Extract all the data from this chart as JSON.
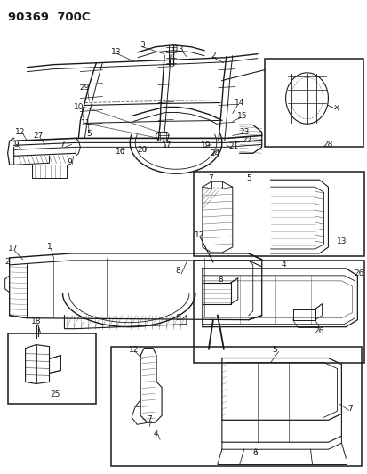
{
  "title": "90369  700C",
  "bg_color": "#ffffff",
  "line_color": "#1a1a1a",
  "title_fontsize": 10,
  "label_fontsize": 6.5,
  "figsize": [
    4.14,
    5.33
  ],
  "dpi": 100
}
